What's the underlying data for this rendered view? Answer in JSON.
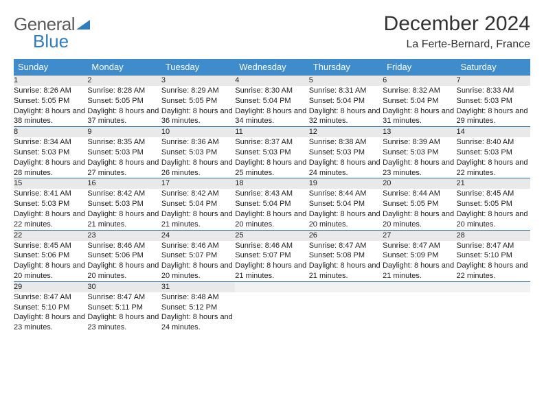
{
  "brand": {
    "part1": "General",
    "part2": "Blue",
    "color_gray": "#5a5a5a",
    "color_blue": "#2f7bbf"
  },
  "header": {
    "month": "December 2024",
    "location": "La Ferte-Bernard, France"
  },
  "style": {
    "header_bg": "#3e8ccc",
    "header_fg": "#ffffff",
    "daynum_bg": "#e9e9e9",
    "row_border": "#2f6fa3",
    "body_font_size": 11,
    "title_font_size": 30,
    "location_font_size": 16
  },
  "weekdays": [
    "Sunday",
    "Monday",
    "Tuesday",
    "Wednesday",
    "Thursday",
    "Friday",
    "Saturday"
  ],
  "weeks": [
    [
      {
        "n": "1",
        "sr": "8:26 AM",
        "ss": "5:05 PM",
        "dl": "8 hours and 38 minutes."
      },
      {
        "n": "2",
        "sr": "8:28 AM",
        "ss": "5:05 PM",
        "dl": "8 hours and 37 minutes."
      },
      {
        "n": "3",
        "sr": "8:29 AM",
        "ss": "5:05 PM",
        "dl": "8 hours and 36 minutes."
      },
      {
        "n": "4",
        "sr": "8:30 AM",
        "ss": "5:04 PM",
        "dl": "8 hours and 34 minutes."
      },
      {
        "n": "5",
        "sr": "8:31 AM",
        "ss": "5:04 PM",
        "dl": "8 hours and 32 minutes."
      },
      {
        "n": "6",
        "sr": "8:32 AM",
        "ss": "5:04 PM",
        "dl": "8 hours and 31 minutes."
      },
      {
        "n": "7",
        "sr": "8:33 AM",
        "ss": "5:03 PM",
        "dl": "8 hours and 29 minutes."
      }
    ],
    [
      {
        "n": "8",
        "sr": "8:34 AM",
        "ss": "5:03 PM",
        "dl": "8 hours and 28 minutes."
      },
      {
        "n": "9",
        "sr": "8:35 AM",
        "ss": "5:03 PM",
        "dl": "8 hours and 27 minutes."
      },
      {
        "n": "10",
        "sr": "8:36 AM",
        "ss": "5:03 PM",
        "dl": "8 hours and 26 minutes."
      },
      {
        "n": "11",
        "sr": "8:37 AM",
        "ss": "5:03 PM",
        "dl": "8 hours and 25 minutes."
      },
      {
        "n": "12",
        "sr": "8:38 AM",
        "ss": "5:03 PM",
        "dl": "8 hours and 24 minutes."
      },
      {
        "n": "13",
        "sr": "8:39 AM",
        "ss": "5:03 PM",
        "dl": "8 hours and 23 minutes."
      },
      {
        "n": "14",
        "sr": "8:40 AM",
        "ss": "5:03 PM",
        "dl": "8 hours and 22 minutes."
      }
    ],
    [
      {
        "n": "15",
        "sr": "8:41 AM",
        "ss": "5:03 PM",
        "dl": "8 hours and 22 minutes."
      },
      {
        "n": "16",
        "sr": "8:42 AM",
        "ss": "5:03 PM",
        "dl": "8 hours and 21 minutes."
      },
      {
        "n": "17",
        "sr": "8:42 AM",
        "ss": "5:04 PM",
        "dl": "8 hours and 21 minutes."
      },
      {
        "n": "18",
        "sr": "8:43 AM",
        "ss": "5:04 PM",
        "dl": "8 hours and 20 minutes."
      },
      {
        "n": "19",
        "sr": "8:44 AM",
        "ss": "5:04 PM",
        "dl": "8 hours and 20 minutes."
      },
      {
        "n": "20",
        "sr": "8:44 AM",
        "ss": "5:05 PM",
        "dl": "8 hours and 20 minutes."
      },
      {
        "n": "21",
        "sr": "8:45 AM",
        "ss": "5:05 PM",
        "dl": "8 hours and 20 minutes."
      }
    ],
    [
      {
        "n": "22",
        "sr": "8:45 AM",
        "ss": "5:06 PM",
        "dl": "8 hours and 20 minutes."
      },
      {
        "n": "23",
        "sr": "8:46 AM",
        "ss": "5:06 PM",
        "dl": "8 hours and 20 minutes."
      },
      {
        "n": "24",
        "sr": "8:46 AM",
        "ss": "5:07 PM",
        "dl": "8 hours and 20 minutes."
      },
      {
        "n": "25",
        "sr": "8:46 AM",
        "ss": "5:07 PM",
        "dl": "8 hours and 21 minutes."
      },
      {
        "n": "26",
        "sr": "8:47 AM",
        "ss": "5:08 PM",
        "dl": "8 hours and 21 minutes."
      },
      {
        "n": "27",
        "sr": "8:47 AM",
        "ss": "5:09 PM",
        "dl": "8 hours and 21 minutes."
      },
      {
        "n": "28",
        "sr": "8:47 AM",
        "ss": "5:10 PM",
        "dl": "8 hours and 22 minutes."
      }
    ],
    [
      {
        "n": "29",
        "sr": "8:47 AM",
        "ss": "5:10 PM",
        "dl": "8 hours and 23 minutes."
      },
      {
        "n": "30",
        "sr": "8:47 AM",
        "ss": "5:11 PM",
        "dl": "8 hours and 23 minutes."
      },
      {
        "n": "31",
        "sr": "8:48 AM",
        "ss": "5:12 PM",
        "dl": "8 hours and 24 minutes."
      },
      null,
      null,
      null,
      null
    ]
  ],
  "labels": {
    "sunrise": "Sunrise:",
    "sunset": "Sunset:",
    "daylight": "Daylight:"
  }
}
